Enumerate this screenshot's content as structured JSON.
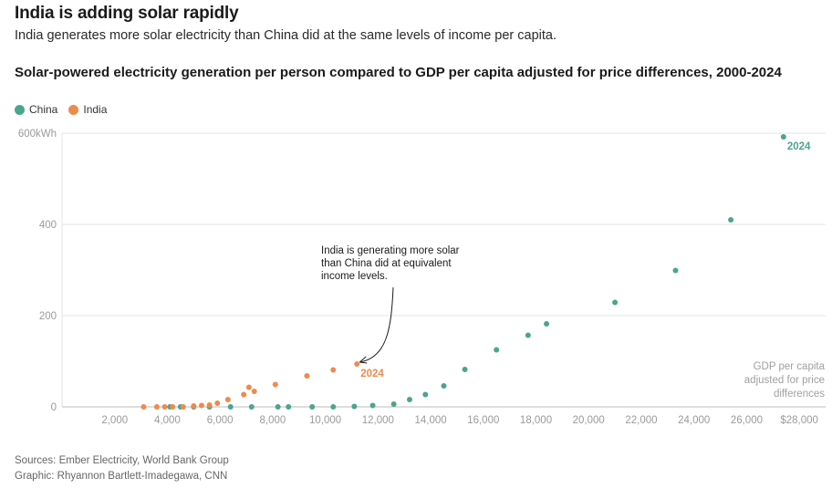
{
  "headline": "India is adding solar rapidly",
  "subhead": "India generates more solar electricity than China did at the same levels of income per capita.",
  "colors": {
    "china": "#4ba58e",
    "india": "#ef8a4c",
    "grid": "#e6e6e6",
    "axis": "#bdbdbd"
  },
  "footer": {
    "sources": "Sources: Ember Electricity, World Bank Group",
    "graphic": "Graphic: Rhyannon Bartlett-Imadegawa, CNN"
  },
  "chart_data": {
    "type": "scatter",
    "title": "Solar-powered electricity generation per person compared to GDP per capita adjusted for price differences, 2000-2024",
    "xlabel": "GDP per capita adjusted for price differences",
    "xlabel_lines": [
      "GDP per capita",
      "adjusted for price",
      "differences"
    ],
    "ylabel": "",
    "xlim": [
      0,
      29000
    ],
    "ylim": [
      0,
      600
    ],
    "x_ticks": [
      2000,
      4000,
      6000,
      8000,
      10000,
      12000,
      14000,
      16000,
      18000,
      20000,
      22000,
      24000,
      26000,
      28000
    ],
    "x_tick_labels": [
      "2,000",
      "4,000",
      "6,000",
      "8,000",
      "10,000",
      "12,000",
      "14,000",
      "16,000",
      "18,000",
      "20,000",
      "22,000",
      "24,000",
      "26,000",
      "$28,000"
    ],
    "y_ticks": [
      0,
      200,
      400,
      600
    ],
    "y_tick_labels": [
      "0",
      "200",
      "400",
      "600kWh"
    ],
    "legend": [
      "China",
      "India"
    ],
    "series": [
      {
        "name": "China",
        "color_key": "china",
        "end_label": "2024",
        "points": [
          {
            "x": 4100,
            "y": 0
          },
          {
            "x": 4500,
            "y": 0
          },
          {
            "x": 5000,
            "y": 0
          },
          {
            "x": 5600,
            "y": 0
          },
          {
            "x": 6400,
            "y": 0
          },
          {
            "x": 7200,
            "y": 0
          },
          {
            "x": 8200,
            "y": 0
          },
          {
            "x": 8600,
            "y": 0
          },
          {
            "x": 9500,
            "y": 0
          },
          {
            "x": 10300,
            "y": 0
          },
          {
            "x": 11100,
            "y": 1
          },
          {
            "x": 11800,
            "y": 3
          },
          {
            "x": 12600,
            "y": 6
          },
          {
            "x": 13200,
            "y": 16
          },
          {
            "x": 13800,
            "y": 27
          },
          {
            "x": 14500,
            "y": 46
          },
          {
            "x": 15300,
            "y": 82
          },
          {
            "x": 16500,
            "y": 125
          },
          {
            "x": 17700,
            "y": 157
          },
          {
            "x": 18400,
            "y": 182
          },
          {
            "x": 21000,
            "y": 229
          },
          {
            "x": 23300,
            "y": 299
          },
          {
            "x": 25400,
            "y": 410
          },
          {
            "x": 27400,
            "y": 592
          }
        ]
      },
      {
        "name": "India",
        "color_key": "india",
        "end_label": "2024",
        "points": [
          {
            "x": 3100,
            "y": 0
          },
          {
            "x": 3600,
            "y": 0
          },
          {
            "x": 3900,
            "y": 0
          },
          {
            "x": 4200,
            "y": 0
          },
          {
            "x": 4600,
            "y": 0
          },
          {
            "x": 5000,
            "y": 2
          },
          {
            "x": 5300,
            "y": 3
          },
          {
            "x": 5600,
            "y": 4
          },
          {
            "x": 5900,
            "y": 8
          },
          {
            "x": 6300,
            "y": 16
          },
          {
            "x": 6900,
            "y": 27
          },
          {
            "x": 7100,
            "y": 43
          },
          {
            "x": 7300,
            "y": 34
          },
          {
            "x": 8100,
            "y": 49
          },
          {
            "x": 9300,
            "y": 68
          },
          {
            "x": 10300,
            "y": 81
          },
          {
            "x": 11200,
            "y": 94
          }
        ]
      }
    ],
    "annotation": {
      "lines": [
        "India is generating more solar",
        "than China did at equivalent",
        "income levels."
      ],
      "target_series": "India"
    }
  }
}
